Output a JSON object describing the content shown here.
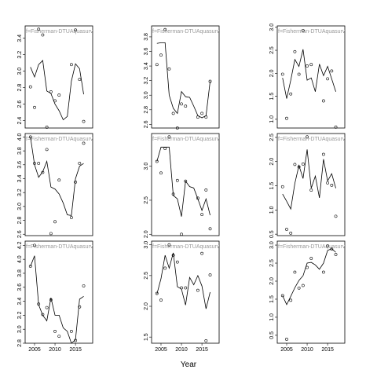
{
  "xlabel": "Year",
  "chart_data": [
    {
      "type": "scatter_line",
      "title": "f=Fisherman-DTUAquasurv",
      "x": [
        2004,
        2005,
        2006,
        2007,
        2008,
        2009,
        2010,
        2011,
        2012,
        2013,
        2014,
        2015,
        2016,
        2017
      ],
      "values": [
        2.81,
        2.56,
        3.51,
        3.44,
        2.32,
        2.75,
        2.64,
        2.71,
        null,
        null,
        3.08,
        3.5,
        2.9,
        2.39
      ],
      "line": [
        3.05,
        2.93,
        3.08,
        3.13,
        2.76,
        2.73,
        2.6,
        2.52,
        2.41,
        2.45,
        2.88,
        3.09,
        3.03,
        2.72
      ],
      "xlim": [
        2002.7,
        2019.2
      ],
      "ylim": [
        2.31,
        3.55
      ],
      "yticks": [
        2.4,
        2.6,
        2.8,
        {
          "value": 3,
          "label": "3.0"
        },
        3.2,
        3.4
      ]
    },
    {
      "type": "scatter_line",
      "title": "f=Fisherman-DTUAquasurv",
      "x": [
        2004,
        2005,
        2006,
        2007,
        2008,
        2009,
        2010,
        2011,
        2012,
        2013,
        2014,
        2015,
        2016,
        2017
      ],
      "values": [
        3.42,
        3.55,
        3.9,
        3.36,
        2.75,
        2.55,
        2.88,
        2.85,
        null,
        null,
        2.7,
        2.75,
        2.7,
        3.19
      ],
      "line": [
        3.71,
        3.72,
        3.72,
        3.0,
        2.82,
        2.75,
        3.05,
        2.98,
        2.97,
        2.85,
        2.72,
        2.69,
        2.72,
        3.19
      ],
      "xlim": [
        2002.7,
        2019.2
      ],
      "ylim": [
        2.55,
        3.95
      ],
      "yticks": [
        2.6,
        2.8,
        {
          "value": 3,
          "label": "3.0"
        },
        3.2,
        3.4,
        3.6,
        3.8
      ]
    },
    {
      "type": "scatter_line",
      "title": "f=Fisherman-DTUAquasurv",
      "x": [
        2004,
        2005,
        2006,
        2007,
        2008,
        2009,
        2010,
        2011,
        2012,
        2013,
        2014,
        2015,
        2016,
        2017
      ],
      "values": [
        1.98,
        1.02,
        1.55,
        2.47,
        1.98,
        2.93,
        2.16,
        2.19,
        null,
        null,
        1.4,
        1.88,
        2.05,
        0.83
      ],
      "line": [
        1.9,
        1.45,
        1.85,
        2.3,
        2.15,
        2.52,
        1.85,
        1.9,
        1.6,
        2.2,
        1.95,
        2.15,
        1.88,
        1.6
      ],
      "xlim": [
        2002.7,
        2019.2
      ],
      "ylim": [
        0.81,
        3.03
      ],
      "yticks": [
        {
          "value": 1,
          "label": "1.0"
        },
        1.5,
        {
          "value": 2,
          "label": "2.0"
        },
        2.5,
        {
          "value": 3,
          "label": "3.0"
        }
      ]
    },
    {
      "type": "scatter_line",
      "title": "f=Fisherman-DTUAquasurv",
      "x": [
        2004,
        2005,
        2006,
        2007,
        2008,
        2009,
        2010,
        2011,
        2012,
        2013,
        2014,
        2015,
        2016,
        2017
      ],
      "values": [
        4.0,
        3.62,
        3.62,
        3.49,
        3.82,
        2.61,
        2.78,
        3.38,
        null,
        null,
        2.84,
        3.35,
        3.62,
        3.91
      ],
      "line": [
        4.0,
        3.6,
        3.42,
        3.5,
        3.65,
        3.28,
        3.25,
        3.18,
        3.05,
        2.88,
        2.87,
        3.4,
        3.58,
        3.62
      ],
      "xlim": [
        2002.7,
        2019.2
      ],
      "ylim": [
        2.58,
        4.05
      ],
      "yticks": [
        2.6,
        2.8,
        {
          "value": 3,
          "label": "3.0"
        },
        3.2,
        3.4,
        3.6,
        3.8,
        {
          "value": 4,
          "label": "4.0"
        }
      ]
    },
    {
      "type": "scatter_line",
      "title": "f=Fisherman-DTUAquasurv",
      "x": [
        2004,
        2005,
        2006,
        2007,
        2008,
        2009,
        2010,
        2011,
        2012,
        2013,
        2014,
        2015,
        2016,
        2017
      ],
      "values": [
        3.07,
        2.9,
        3.26,
        3.43,
        2.59,
        2.79,
        2.0,
        2.78,
        null,
        null,
        2.53,
        2.29,
        2.65,
        2.08
      ],
      "line": [
        3.07,
        3.28,
        3.28,
        3.28,
        2.57,
        2.52,
        2.26,
        2.78,
        2.7,
        2.68,
        2.52,
        2.35,
        2.52,
        2.28
      ],
      "xlim": [
        2002.7,
        2019.2
      ],
      "ylim": [
        1.98,
        3.48
      ],
      "yticks": [
        {
          "value": 2,
          "label": "2.0"
        },
        2.5,
        {
          "value": 3,
          "label": "3.0"
        }
      ]
    },
    {
      "type": "scatter_line",
      "title": "f=Fisherman-DTUAquasurv",
      "x": [
        2004,
        2005,
        2006,
        2007,
        2008,
        2009,
        2010,
        2011,
        2012,
        2013,
        2014,
        2015,
        2016,
        2017
      ],
      "values": [
        1.48,
        0.6,
        0.52,
        1.94,
        1.89,
        1.95,
        2.51,
        1.41,
        null,
        null,
        2.15,
        1.56,
        1.51,
        0.87
      ],
      "line": [
        1.33,
        1.18,
        1.02,
        1.55,
        1.92,
        1.65,
        2.25,
        1.45,
        1.7,
        1.25,
        2.05,
        1.6,
        1.75,
        1.45
      ],
      "xlim": [
        2002.7,
        2019.2
      ],
      "ylim": [
        0.47,
        2.58
      ],
      "yticks": [
        0.5,
        {
          "value": 1,
          "label": "1.0"
        },
        1.5,
        {
          "value": 2,
          "label": "2.0"
        },
        2.5
      ]
    },
    {
      "type": "scatter_line",
      "title": "f=Fisherman-DTUAquasurv",
      "x": [
        2004,
        2005,
        2006,
        2007,
        2008,
        2009,
        2010,
        2011,
        2012,
        2013,
        2014,
        2015,
        2016,
        2017
      ],
      "values": [
        3.9,
        4.2,
        3.36,
        3.21,
        3.31,
        3.42,
        2.97,
        2.9,
        null,
        null,
        2.97,
        2.84,
        3.32,
        3.62
      ],
      "line": [
        3.9,
        4.05,
        3.35,
        3.2,
        3.12,
        3.45,
        3.2,
        3.2,
        3.02,
        2.97,
        2.8,
        2.85,
        3.43,
        3.47
      ],
      "xlim": [
        2002.7,
        2019.2
      ],
      "ylim": [
        2.8,
        4.26
      ],
      "yticks": [
        2.8,
        {
          "value": 3,
          "label": "3.0"
        },
        3.2,
        3.4,
        3.6,
        3.8,
        {
          "value": 4,
          "label": "4.0"
        },
        4.2
      ],
      "xticks": [
        2005,
        2010,
        2015
      ]
    },
    {
      "type": "scatter_line",
      "title": "f=Fisherman-DTUAquasurv",
      "x": [
        2004,
        2005,
        2006,
        2007,
        2008,
        2009,
        2010,
        2011,
        2012,
        2013,
        2014,
        2015,
        2016,
        2017
      ],
      "values": [
        2.21,
        2.1,
        2.62,
        3.0,
        2.83,
        2.72,
        2.3,
        2.3,
        null,
        null,
        2.26,
        2.86,
        1.44,
        2.51
      ],
      "line": [
        2.2,
        2.45,
        2.83,
        2.62,
        2.87,
        2.32,
        2.28,
        2.02,
        2.47,
        2.35,
        2.5,
        2.33,
        1.96,
        2.23
      ],
      "xlim": [
        2002.7,
        2019.2
      ],
      "ylim": [
        1.4,
        3.06
      ],
      "yticks": [
        1.5,
        {
          "value": 2,
          "label": "2.0"
        },
        2.5,
        {
          "value": 3,
          "label": "3.0"
        }
      ],
      "xticks": [
        2005,
        2010,
        2015
      ]
    },
    {
      "type": "scatter_line",
      "title": "f=Fisherman-DTUAquasurv",
      "x": [
        2004,
        2005,
        2006,
        2007,
        2008,
        2009,
        2010,
        2011,
        2012,
        2013,
        2014,
        2015,
        2016,
        2017
      ],
      "values": [
        1.6,
        0.39,
        1.47,
        2.25,
        1.81,
        1.88,
        2.38,
        2.63,
        null,
        null,
        2.25,
        2.98,
        2.89,
        2.74
      ],
      "line": [
        1.6,
        1.35,
        1.58,
        1.82,
        2.02,
        2.15,
        2.5,
        2.52,
        2.45,
        2.33,
        2.5,
        2.85,
        2.9,
        2.8
      ],
      "xlim": [
        2002.7,
        2019.2
      ],
      "ylim": [
        0.28,
        3.11
      ],
      "yticks": [
        0.5,
        {
          "value": 1,
          "label": "1.0"
        },
        1.5,
        {
          "value": 2,
          "label": "2.0"
        },
        2.5,
        {
          "value": 3,
          "label": "3.0"
        }
      ],
      "xticks": [
        2005,
        2010,
        2015
      ]
    }
  ]
}
